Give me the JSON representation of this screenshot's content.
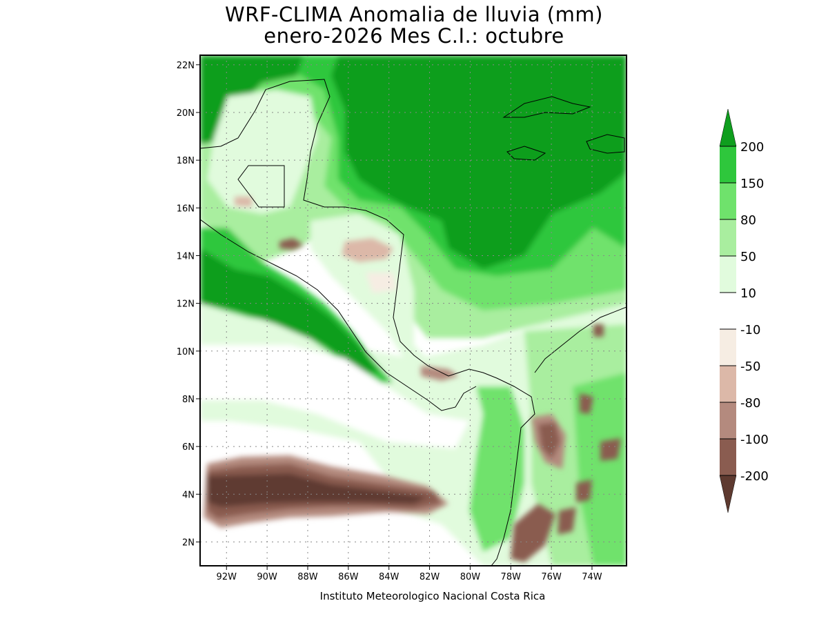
{
  "title": {
    "line1": "WRF-CLIMA Anomalia de lluvia (mm)",
    "line2": "enero-2026 Mes C.I.: octubre"
  },
  "credit": "Instituto Meteorologico Nacional Costa Rica",
  "map": {
    "lon_range": [
      -93.3,
      -72.3
    ],
    "lat_range": [
      1.0,
      22.4
    ],
    "lon_ticks": [
      "92W",
      "90W",
      "88W",
      "86W",
      "84W",
      "82W",
      "80W",
      "78W",
      "76W",
      "74W"
    ],
    "lat_ticks": [
      "2N",
      "4N",
      "6N",
      "8N",
      "10N",
      "12N",
      "14N",
      "16N",
      "18N",
      "20N",
      "22N"
    ]
  },
  "colorbar": {
    "labels": [
      "200",
      "150",
      "80",
      "50",
      "10",
      "-10",
      "-50",
      "-80",
      "-100",
      "-200"
    ],
    "colors": {
      "gt200": "#0f9e1e",
      "c150_200": "#2ec73c",
      "c80_150": "#6fe26c",
      "c50_80": "#a9ee9f",
      "c10_50": "#e1fbdd",
      "neutral": "#ffffff",
      "m10_50": "#f6ede3",
      "m50_80": "#dcb8a8",
      "m80_100": "#b48a7e",
      "m100_200": "#8a5c50",
      "lt_m200": "#5e3a30"
    }
  }
}
